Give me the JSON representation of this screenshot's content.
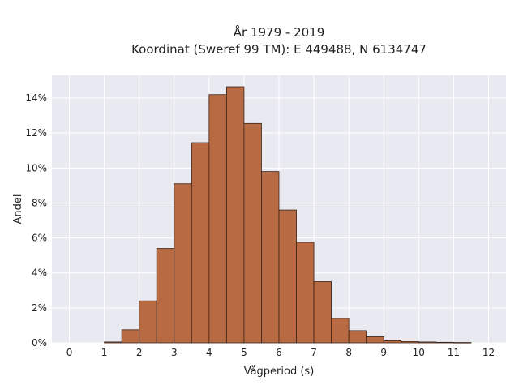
{
  "chart_data": {
    "type": "bar",
    "title_line1": "År 1979 - 2019",
    "title_line2": "Koordinat (Sweref 99 TM): E 449488, N 6134747",
    "xlabel": "Vågperiod (s)",
    "ylabel": "Andel",
    "xlim": [
      -0.5,
      12.5
    ],
    "ylim": [
      0,
      15.3
    ],
    "x_ticks": [
      0,
      1,
      2,
      3,
      4,
      5,
      6,
      7,
      8,
      9,
      10,
      11,
      12
    ],
    "x_tick_labels": [
      "0",
      "1",
      "2",
      "3",
      "4",
      "5",
      "6",
      "7",
      "8",
      "9",
      "10",
      "11",
      "12"
    ],
    "y_ticks": [
      0,
      2,
      4,
      6,
      8,
      10,
      12,
      14
    ],
    "y_tick_labels": [
      "0%",
      "2%",
      "4%",
      "6%",
      "8%",
      "10%",
      "12%",
      "14%"
    ],
    "bin_width": 0.5,
    "bins": [
      {
        "start": 1.0,
        "value": 0.05
      },
      {
        "start": 1.5,
        "value": 0.75
      },
      {
        "start": 2.0,
        "value": 2.4
      },
      {
        "start": 2.5,
        "value": 5.4
      },
      {
        "start": 3.0,
        "value": 9.1
      },
      {
        "start": 3.5,
        "value": 11.45
      },
      {
        "start": 4.0,
        "value": 14.2
      },
      {
        "start": 4.5,
        "value": 14.65
      },
      {
        "start": 5.0,
        "value": 12.55
      },
      {
        "start": 5.5,
        "value": 9.8
      },
      {
        "start": 6.0,
        "value": 7.6
      },
      {
        "start": 6.5,
        "value": 5.75
      },
      {
        "start": 7.0,
        "value": 3.5
      },
      {
        "start": 7.5,
        "value": 1.4
      },
      {
        "start": 8.0,
        "value": 0.7
      },
      {
        "start": 8.5,
        "value": 0.35
      },
      {
        "start": 9.0,
        "value": 0.12
      },
      {
        "start": 9.5,
        "value": 0.07
      },
      {
        "start": 10.0,
        "value": 0.05
      },
      {
        "start": 10.5,
        "value": 0.03
      },
      {
        "start": 11.0,
        "value": 0.02
      }
    ],
    "grid": true,
    "colors": {
      "bar_fill": "#b86a42",
      "bar_edge": "#3a2418",
      "plot_background": "#e9e9f1",
      "grid": "#ffffff"
    }
  }
}
